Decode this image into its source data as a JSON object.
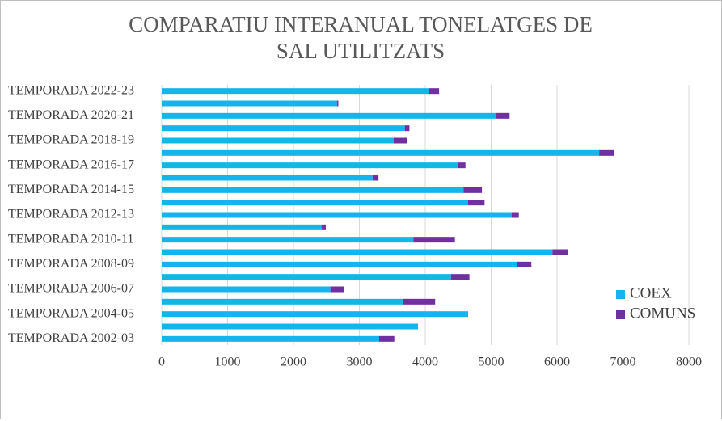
{
  "chart_data": {
    "type": "bar",
    "orientation": "horizontal",
    "stacked": true,
    "title": "COMPARATIU INTERANUAL TONELATGES DE SAL UTILITZATS",
    "categories": [
      "TEMPORADA 2002-03",
      null,
      "TEMPORADA 2004-05",
      null,
      "TEMPORADA 2006-07",
      null,
      "TEMPORADA 2008-09",
      null,
      "TEMPORADA 2010-11",
      null,
      "TEMPORADA 2012-13",
      null,
      "TEMPORADA 2014-15",
      null,
      "TEMPORADA 2016-17",
      null,
      "TEMPORADA 2018-19",
      null,
      "TEMPORADA 2020-21",
      null,
      "TEMPORADA 2022-23"
    ],
    "series": [
      {
        "name": "COEX",
        "color": "#13b5ea",
        "values": [
          3300,
          3890,
          4650,
          3660,
          2560,
          4390,
          5390,
          5930,
          3820,
          2430,
          5310,
          4650,
          4580,
          3200,
          4500,
          6640,
          3520,
          3690,
          5080,
          2660,
          4050
        ]
      },
      {
        "name": "COMUNS",
        "color": "#7030a0",
        "values": [
          230,
          0,
          0,
          490,
          210,
          280,
          220,
          230,
          630,
          60,
          110,
          250,
          280,
          90,
          110,
          230,
          200,
          70,
          200,
          20,
          160
        ]
      }
    ],
    "xlim": [
      0,
      8000
    ],
    "xticks": [
      0,
      1000,
      2000,
      3000,
      4000,
      5000,
      6000,
      7000,
      8000
    ],
    "grid": true,
    "legend": "right"
  }
}
